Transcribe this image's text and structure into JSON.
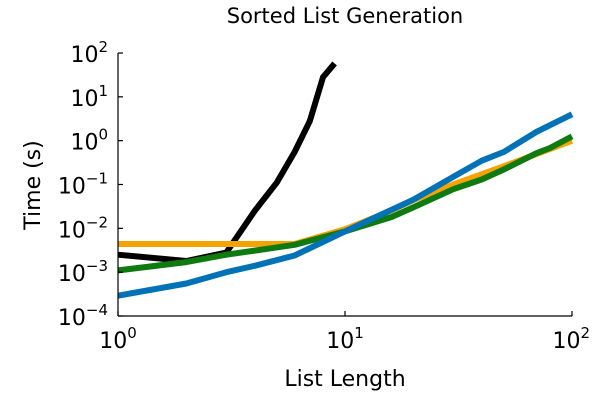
{
  "chart_data": {
    "type": "line",
    "title": "Sorted List Generation",
    "xlabel": "List Length",
    "ylabel": "Time (s)",
    "xscale": "log",
    "yscale": "log",
    "xlim": [
      1,
      100
    ],
    "ylim": [
      0.0001,
      100
    ],
    "grid": false,
    "legend": "none",
    "xticks": [
      {
        "value": 1,
        "base": "10",
        "exp": "0"
      },
      {
        "value": 10,
        "base": "10",
        "exp": "1"
      },
      {
        "value": 100,
        "base": "10",
        "exp": "2"
      }
    ],
    "yticks": [
      {
        "value": 0.0001,
        "base": "10",
        "exp": "−4"
      },
      {
        "value": 0.001,
        "base": "10",
        "exp": "−3"
      },
      {
        "value": 0.01,
        "base": "10",
        "exp": "−2"
      },
      {
        "value": 0.1,
        "base": "10",
        "exp": "−1"
      },
      {
        "value": 1,
        "base": "10",
        "exp": "0"
      },
      {
        "value": 10,
        "base": "10",
        "exp": "1"
      },
      {
        "value": 100,
        "base": "10",
        "exp": "2"
      }
    ],
    "series": [
      {
        "color": "#000000",
        "points": [
          [
            1,
            0.0025
          ],
          [
            2,
            0.0018
          ],
          [
            3,
            0.0028
          ],
          [
            4,
            0.025
          ],
          [
            5,
            0.11
          ],
          [
            6,
            0.55
          ],
          [
            7,
            2.8
          ],
          [
            8,
            28
          ],
          [
            9,
            58
          ]
        ]
      },
      {
        "color": "#f4a300",
        "points": [
          [
            1,
            0.0044
          ],
          [
            2,
            0.0044
          ],
          [
            3,
            0.0044
          ],
          [
            4,
            0.0044
          ],
          [
            6,
            0.0044
          ],
          [
            10,
            0.0095
          ],
          [
            15,
            0.022
          ],
          [
            20,
            0.044
          ],
          [
            30,
            0.1
          ],
          [
            50,
            0.26
          ],
          [
            70,
            0.5
          ],
          [
            100,
            1.0
          ]
        ]
      },
      {
        "color": "#0f7a0f",
        "points": [
          [
            1,
            0.0011
          ],
          [
            2,
            0.0017
          ],
          [
            3,
            0.0025
          ],
          [
            4,
            0.0031
          ],
          [
            6,
            0.0042
          ],
          [
            10,
            0.0085
          ],
          [
            16,
            0.018
          ],
          [
            20,
            0.03
          ],
          [
            30,
            0.078
          ],
          [
            40,
            0.13
          ],
          [
            50,
            0.22
          ],
          [
            70,
            0.52
          ],
          [
            80,
            0.68
          ],
          [
            100,
            1.25
          ]
        ]
      },
      {
        "color": "#0072b5",
        "points": [
          [
            1,
            0.00029
          ],
          [
            2,
            0.00055
          ],
          [
            3,
            0.001
          ],
          [
            4,
            0.0014
          ],
          [
            6,
            0.0024
          ],
          [
            10,
            0.0085
          ],
          [
            20,
            0.045
          ],
          [
            30,
            0.15
          ],
          [
            40,
            0.35
          ],
          [
            50,
            0.55
          ],
          [
            70,
            1.6
          ],
          [
            100,
            4.0
          ]
        ]
      }
    ]
  }
}
